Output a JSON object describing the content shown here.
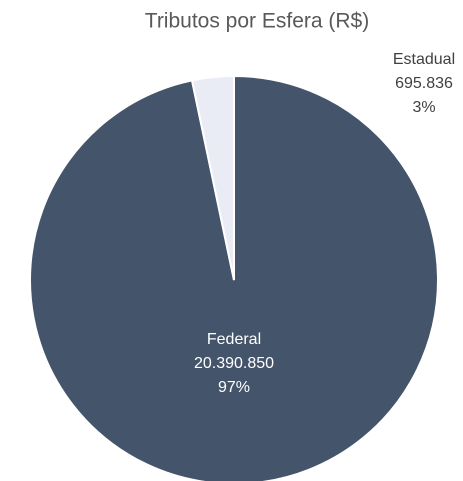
{
  "chart_data": {
    "type": "pie",
    "title": "Tributos por Esfera (R$)",
    "categories": [
      "Federal",
      "Estadual"
    ],
    "values": [
      20390850,
      695836
    ],
    "value_labels": [
      "20.390.850",
      "695.836"
    ],
    "percentages": [
      97,
      3
    ],
    "percentage_labels": [
      "97%",
      "3%"
    ],
    "colors": [
      "#44546a",
      "#e9ecf5"
    ]
  }
}
